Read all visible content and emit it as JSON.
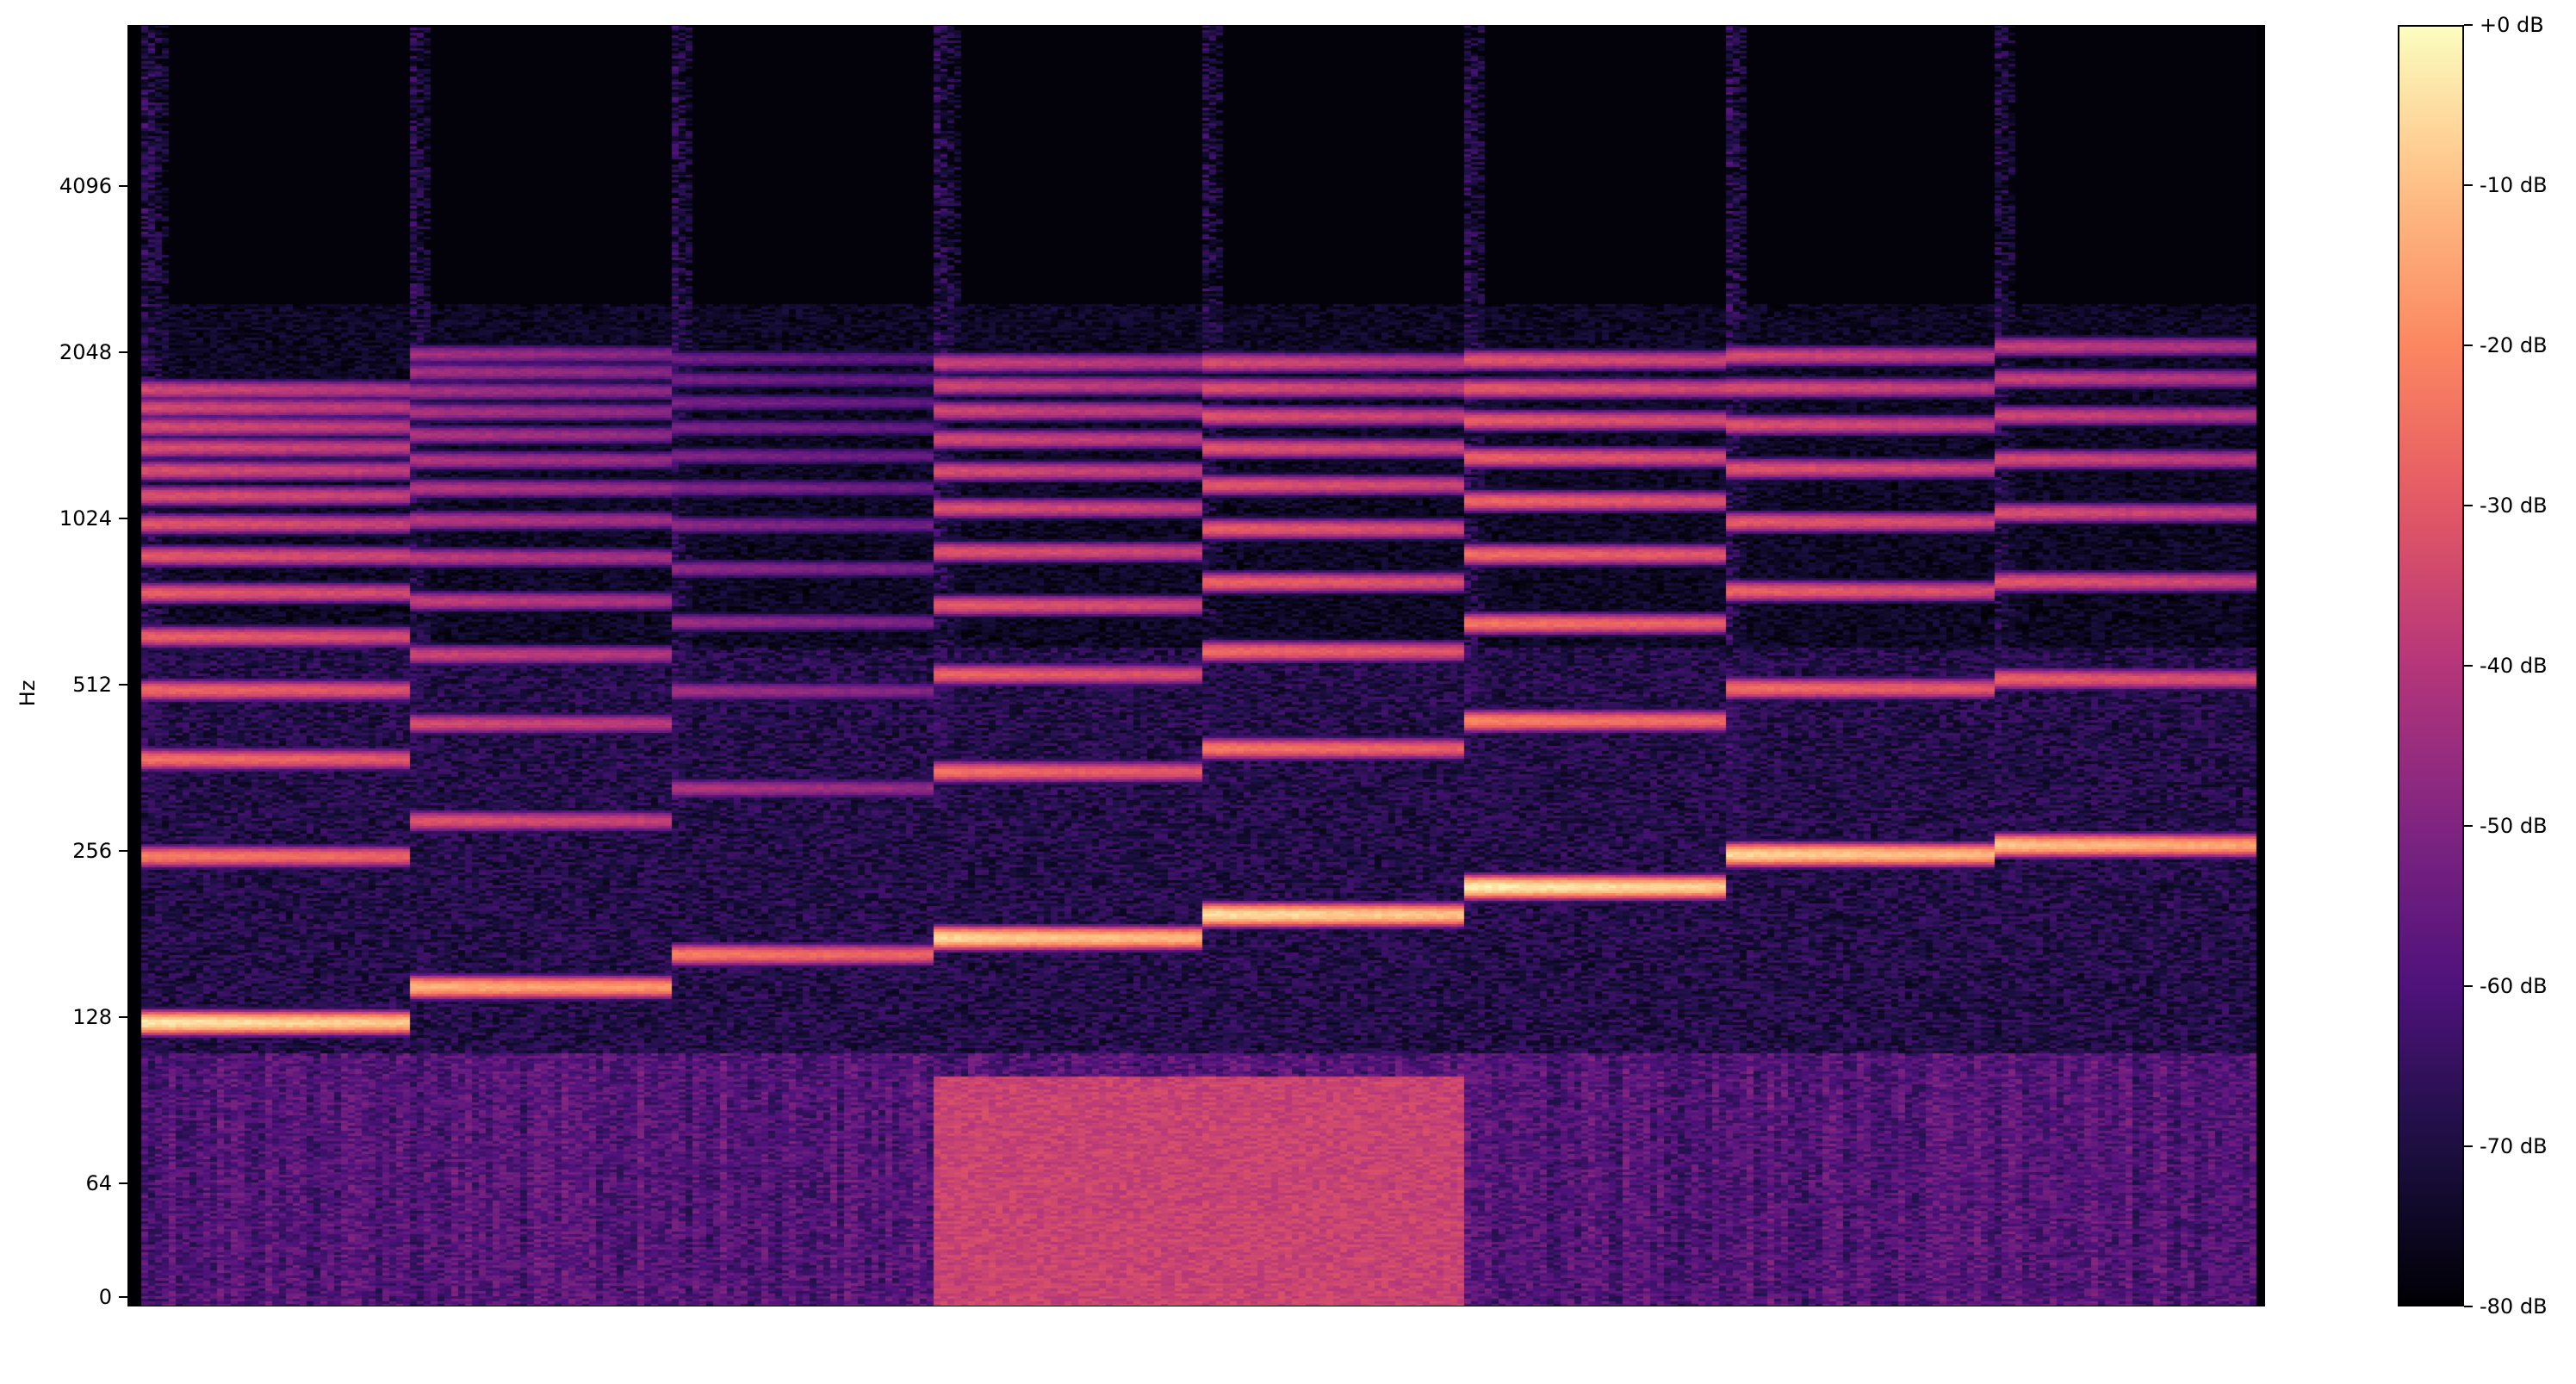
{
  "chart_data": {
    "type": "heatmap",
    "title": "",
    "xlabel": "",
    "ylabel": "Hz",
    "y_scale": "symlog (base 2)",
    "ylim": [
      0,
      8000
    ],
    "y_ticks": [
      0,
      64,
      128,
      256,
      512,
      1024,
      2048,
      4096
    ],
    "y_tick_labels": [
      "0",
      "64",
      "128",
      "256",
      "512",
      "1024",
      "2048",
      "4096"
    ],
    "x_ticks": [],
    "colormap": "magma",
    "colorbar": {
      "range_db": [
        -80,
        0
      ],
      "ticks": [
        0,
        -10,
        -20,
        -30,
        -40,
        -50,
        -60,
        -70,
        -80
      ],
      "tick_labels": [
        "+0 dB",
        "-10 dB",
        "-20 dB",
        "-30 dB",
        "-40 dB",
        "-50 dB",
        "-60 dB",
        "-70 dB",
        "-80 dB"
      ],
      "placement": "right"
    },
    "notes": [
      {
        "order": 1,
        "f0_hz": 125,
        "peak_db": -3
      },
      {
        "order": 2,
        "f0_hz": 145,
        "peak_db": -12
      },
      {
        "order": 3,
        "f0_hz": 166,
        "peak_db": -22
      },
      {
        "order": 4,
        "f0_hz": 178,
        "peak_db": -6
      },
      {
        "order": 5,
        "f0_hz": 196,
        "peak_db": -4
      },
      {
        "order": 6,
        "f0_hz": 220,
        "peak_db": -2
      },
      {
        "order": 7,
        "f0_hz": 252,
        "peak_db": -6
      },
      {
        "order": 8,
        "f0_hz": 262,
        "peak_db": -9
      }
    ],
    "grid": false
  }
}
